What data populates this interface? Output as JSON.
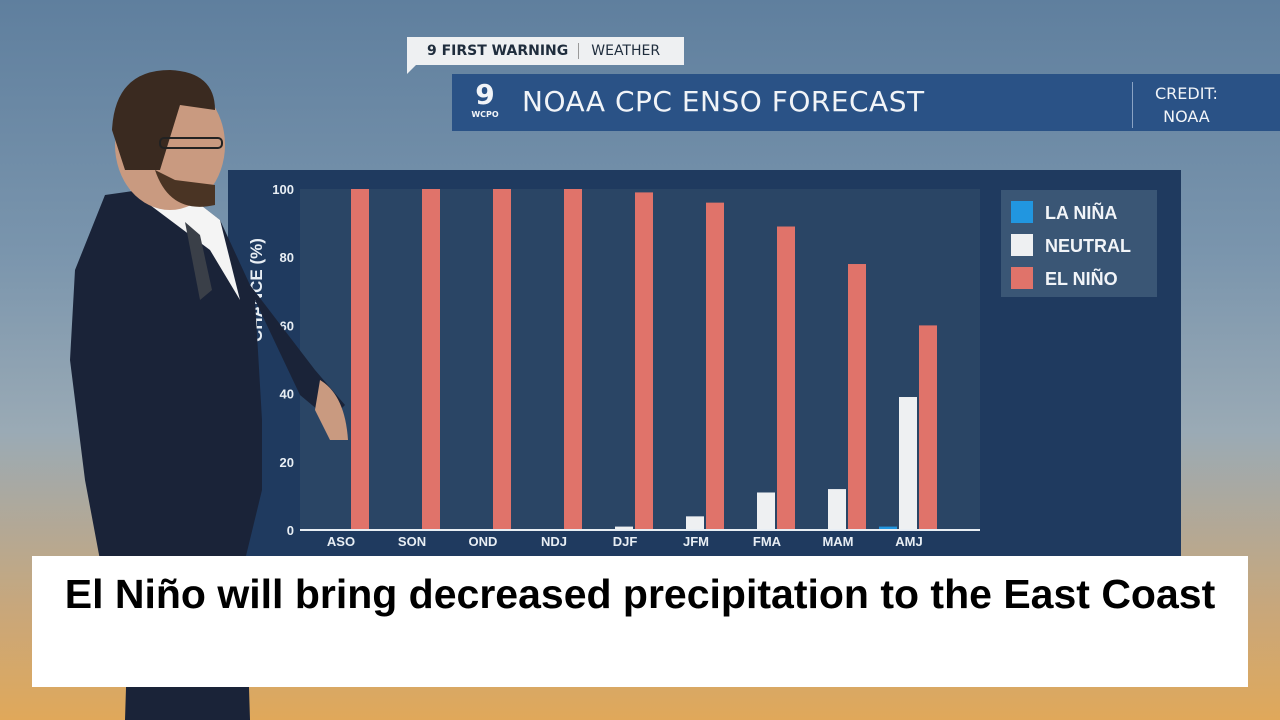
{
  "header": {
    "tag_left": "9 FIRST WARNING",
    "tag_right": "WEATHER",
    "logo_number": "9",
    "logo_text": "WCPO",
    "title": "NOAA CPC ENSO FORECAST",
    "credit_line1": "CREDIT:",
    "credit_line2": "NOAA"
  },
  "caption": "El Niño will bring decreased precipitation to the East Coast",
  "chart_data": {
    "type": "bar",
    "title": "",
    "ylabel": "CHANCE (%)",
    "xlabel": "",
    "ylim": [
      0,
      100
    ],
    "yticks": [
      0,
      20,
      40,
      60,
      80,
      100
    ],
    "grid": false,
    "legend_position": "top-right",
    "categories": [
      "ASO",
      "SON",
      "OND",
      "NDJ",
      "DJF",
      "JFM",
      "FMA",
      "MAM",
      "AMJ"
    ],
    "series": [
      {
        "name": "LA NIÑA",
        "color": "#2196e0",
        "values": [
          0,
          0,
          0,
          0,
          0,
          0,
          0,
          0,
          1
        ]
      },
      {
        "name": "NEUTRAL",
        "color": "#eef0f2",
        "values": [
          0,
          0,
          0,
          0,
          1,
          4,
          11,
          12,
          39
        ]
      },
      {
        "name": "EL NIÑO",
        "color": "#e0736a",
        "values": [
          100,
          100,
          100,
          100,
          99,
          96,
          89,
          78,
          60
        ]
      }
    ]
  }
}
